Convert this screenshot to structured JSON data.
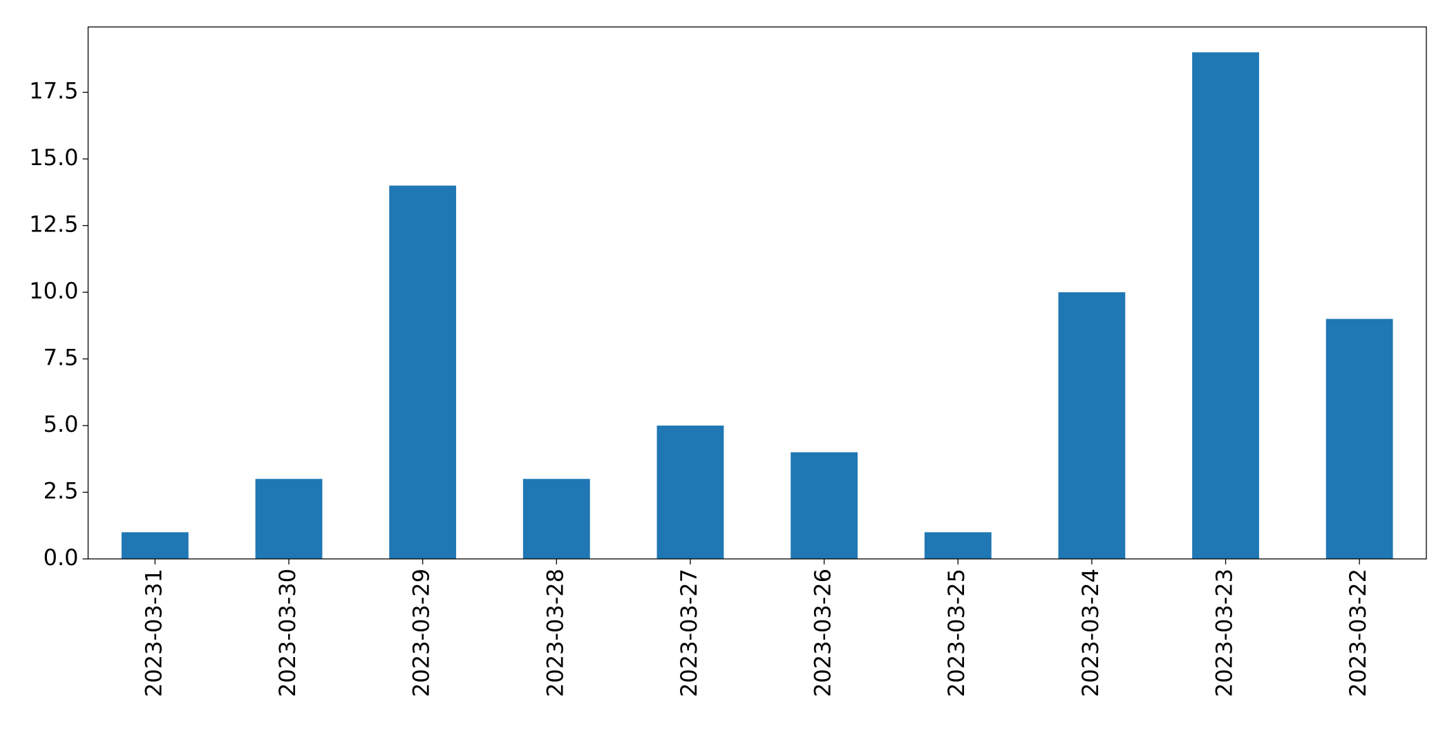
{
  "chart_data": {
    "type": "bar",
    "categories": [
      "2023-03-31",
      "2023-03-30",
      "2023-03-29",
      "2023-03-28",
      "2023-03-27",
      "2023-03-26",
      "2023-03-25",
      "2023-03-24",
      "2023-03-23",
      "2023-03-22"
    ],
    "values": [
      1,
      3,
      14,
      3,
      5,
      4,
      1,
      10,
      19,
      9
    ],
    "color": "#1f77b4",
    "ylim": [
      0,
      19.95
    ],
    "yticks": [
      {
        "value": 0,
        "label": "0.0"
      },
      2.5,
      {
        "value": 5,
        "label": "5.0"
      },
      7.5,
      {
        "value": 10,
        "label": "10.0"
      },
      12.5,
      {
        "value": 15,
        "label": "15.0"
      },
      17.5
    ],
    "grid": false
  }
}
